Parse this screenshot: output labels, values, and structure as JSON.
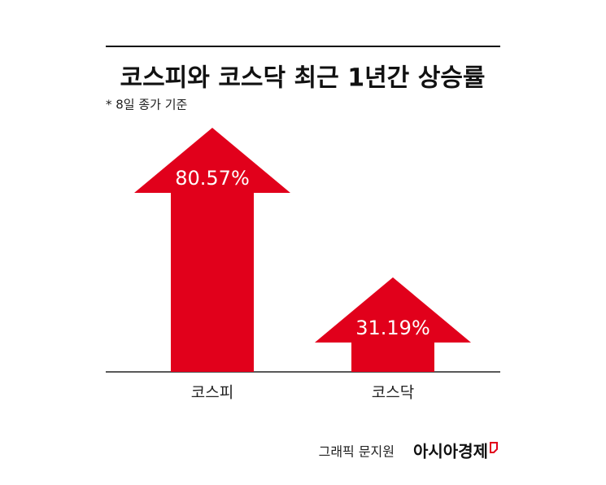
{
  "chart_data": {
    "type": "arrow",
    "title": "코스피와 코스닥 최근 1년간 상승률",
    "subtitle": "* 8일 종가 기준",
    "categories": [
      "코스피",
      "코스닥"
    ],
    "values": [
      80.57,
      31.19
    ],
    "value_labels": [
      "80.57%",
      "31.19%"
    ],
    "color": "#e1001b",
    "credit": "그래픽 문지원",
    "publisher": "아시아경제"
  }
}
